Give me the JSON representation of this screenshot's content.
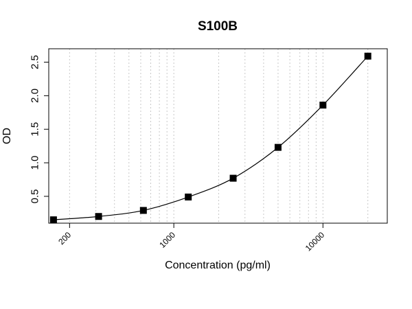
{
  "chart_data": {
    "type": "scatter",
    "title": "S100B",
    "xlabel": "Concentration (pg/ml)",
    "ylabel": "OD",
    "x_scale": "log",
    "xlim": [
      145,
      27000
    ],
    "ylim": [
      0.1,
      2.7
    ],
    "x_ticks": [
      200,
      1000,
      10000
    ],
    "x_tick_labels": [
      "200",
      "1000",
      "10000"
    ],
    "y_ticks": [
      0.5,
      1.0,
      1.5,
      2.0,
      2.5
    ],
    "y_tick_labels": [
      "0.5",
      "1.0",
      "1.5",
      "2.0",
      "2.5"
    ],
    "grid": "vertical dotted at log minor ticks",
    "fit": "smooth standard curve through points",
    "series": [
      {
        "marker": "filled-square",
        "color": "#000000",
        "x": [
          156,
          313,
          625,
          1250,
          2500,
          5000,
          10000,
          20000
        ],
        "y": [
          0.15,
          0.2,
          0.29,
          0.49,
          0.77,
          1.23,
          1.86,
          2.59
        ]
      }
    ]
  }
}
